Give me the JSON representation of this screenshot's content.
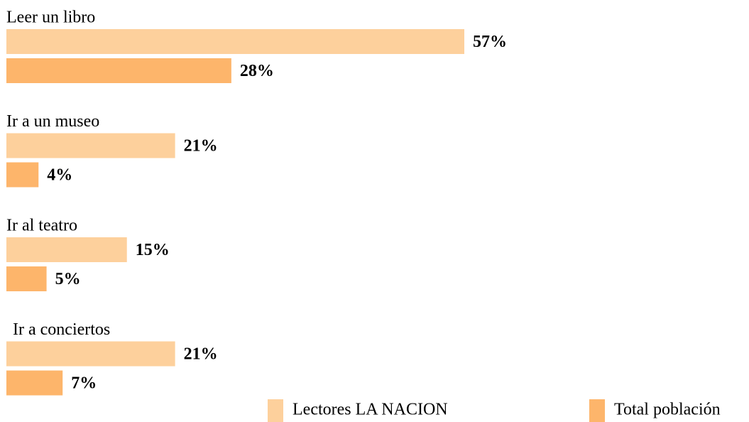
{
  "chart_data": {
    "type": "bar",
    "orientation": "horizontal",
    "categories": [
      "Leer un libro",
      "Ir a un museo",
      "Ir al teatro",
      "Ir a conciertos"
    ],
    "series": [
      {
        "name": "Lectores LA NACION",
        "color": "#fdd09c",
        "values": [
          57,
          21,
          15,
          21
        ],
        "value_labels": [
          "57%",
          "21%",
          "15%",
          "21%"
        ]
      },
      {
        "name": "Total población",
        "color": "#fdb56b",
        "values": [
          28,
          4,
          5,
          7
        ],
        "value_labels": [
          "28%",
          "4%",
          "5%",
          "7%"
        ]
      }
    ]
  }
}
